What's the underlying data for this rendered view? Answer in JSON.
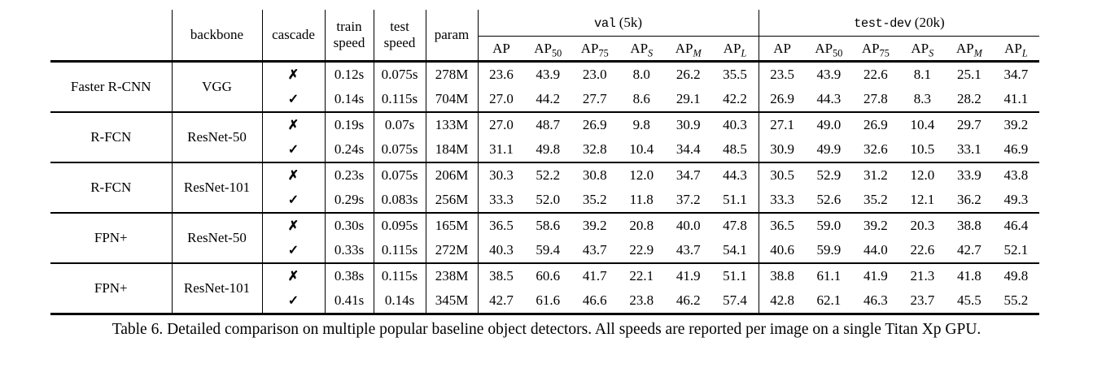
{
  "colors": {
    "text": "#000000",
    "background": "#ffffff",
    "rule": "#000000"
  },
  "table": {
    "header": {
      "backbone": "backbone",
      "cascade": "cascade",
      "train_speed_line1": "train",
      "train_speed_line2": "speed",
      "test_speed_line1": "test",
      "test_speed_line2": "speed",
      "param": "param",
      "groups": [
        {
          "name": "val",
          "count": "(5k)"
        },
        {
          "name": "test-dev",
          "count": "(20k)"
        }
      ],
      "metrics": [
        {
          "base": "AP",
          "sub": "",
          "italic": false
        },
        {
          "base": "AP",
          "sub": "50",
          "italic": false
        },
        {
          "base": "AP",
          "sub": "75",
          "italic": false
        },
        {
          "base": "AP",
          "sub": "S",
          "italic": true
        },
        {
          "base": "AP",
          "sub": "M",
          "italic": true
        },
        {
          "base": "AP",
          "sub": "L",
          "italic": true
        }
      ]
    },
    "cascade_symbols": {
      "no": "✗",
      "yes": "✓"
    },
    "groups": [
      {
        "model": "Faster R-CNN",
        "backbone": "VGG",
        "rows": [
          {
            "cascade": "no",
            "train_speed": "0.12s",
            "test_speed": "0.075s",
            "param": "278M",
            "val": [
              "23.6",
              "43.9",
              "23.0",
              "8.0",
              "26.2",
              "35.5"
            ],
            "test_dev": [
              "23.5",
              "43.9",
              "22.6",
              "8.1",
              "25.1",
              "34.7"
            ]
          },
          {
            "cascade": "yes",
            "train_speed": "0.14s",
            "test_speed": "0.115s",
            "param": "704M",
            "val": [
              "27.0",
              "44.2",
              "27.7",
              "8.6",
              "29.1",
              "42.2"
            ],
            "test_dev": [
              "26.9",
              "44.3",
              "27.8",
              "8.3",
              "28.2",
              "41.1"
            ]
          }
        ]
      },
      {
        "model": "R-FCN",
        "backbone": "ResNet-50",
        "rows": [
          {
            "cascade": "no",
            "train_speed": "0.19s",
            "test_speed": "0.07s",
            "param": "133M",
            "val": [
              "27.0",
              "48.7",
              "26.9",
              "9.8",
              "30.9",
              "40.3"
            ],
            "test_dev": [
              "27.1",
              "49.0",
              "26.9",
              "10.4",
              "29.7",
              "39.2"
            ]
          },
          {
            "cascade": "yes",
            "train_speed": "0.24s",
            "test_speed": "0.075s",
            "param": "184M",
            "val": [
              "31.1",
              "49.8",
              "32.8",
              "10.4",
              "34.4",
              "48.5"
            ],
            "test_dev": [
              "30.9",
              "49.9",
              "32.6",
              "10.5",
              "33.1",
              "46.9"
            ]
          }
        ]
      },
      {
        "model": "R-FCN",
        "backbone": "ResNet-101",
        "rows": [
          {
            "cascade": "no",
            "train_speed": "0.23s",
            "test_speed": "0.075s",
            "param": "206M",
            "val": [
              "30.3",
              "52.2",
              "30.8",
              "12.0",
              "34.7",
              "44.3"
            ],
            "test_dev": [
              "30.5",
              "52.9",
              "31.2",
              "12.0",
              "33.9",
              "43.8"
            ]
          },
          {
            "cascade": "yes",
            "train_speed": "0.29s",
            "test_speed": "0.083s",
            "param": "256M",
            "val": [
              "33.3",
              "52.0",
              "35.2",
              "11.8",
              "37.2",
              "51.1"
            ],
            "test_dev": [
              "33.3",
              "52.6",
              "35.2",
              "12.1",
              "36.2",
              "49.3"
            ]
          }
        ]
      },
      {
        "model": "FPN+",
        "backbone": "ResNet-50",
        "rows": [
          {
            "cascade": "no",
            "train_speed": "0.30s",
            "test_speed": "0.095s",
            "param": "165M",
            "val": [
              "36.5",
              "58.6",
              "39.2",
              "20.8",
              "40.0",
              "47.8"
            ],
            "test_dev": [
              "36.5",
              "59.0",
              "39.2",
              "20.3",
              "38.8",
              "46.4"
            ]
          },
          {
            "cascade": "yes",
            "train_speed": "0.33s",
            "test_speed": "0.115s",
            "param": "272M",
            "val": [
              "40.3",
              "59.4",
              "43.7",
              "22.9",
              "43.7",
              "54.1"
            ],
            "test_dev": [
              "40.6",
              "59.9",
              "44.0",
              "22.6",
              "42.7",
              "52.1"
            ]
          }
        ]
      },
      {
        "model": "FPN+",
        "backbone": "ResNet-101",
        "rows": [
          {
            "cascade": "no",
            "train_speed": "0.38s",
            "test_speed": "0.115s",
            "param": "238M",
            "val": [
              "38.5",
              "60.6",
              "41.7",
              "22.1",
              "41.9",
              "51.1"
            ],
            "test_dev": [
              "38.8",
              "61.1",
              "41.9",
              "21.3",
              "41.8",
              "49.8"
            ]
          },
          {
            "cascade": "yes",
            "train_speed": "0.41s",
            "test_speed": "0.14s",
            "param": "345M",
            "val": [
              "42.7",
              "61.6",
              "46.6",
              "23.8",
              "46.2",
              "57.4"
            ],
            "test_dev": [
              "42.8",
              "62.1",
              "46.3",
              "23.7",
              "45.5",
              "55.2"
            ]
          }
        ]
      }
    ]
  },
  "caption": "Table 6. Detailed comparison on multiple popular baseline object detectors. All speeds are reported per image on a single Titan Xp GPU."
}
